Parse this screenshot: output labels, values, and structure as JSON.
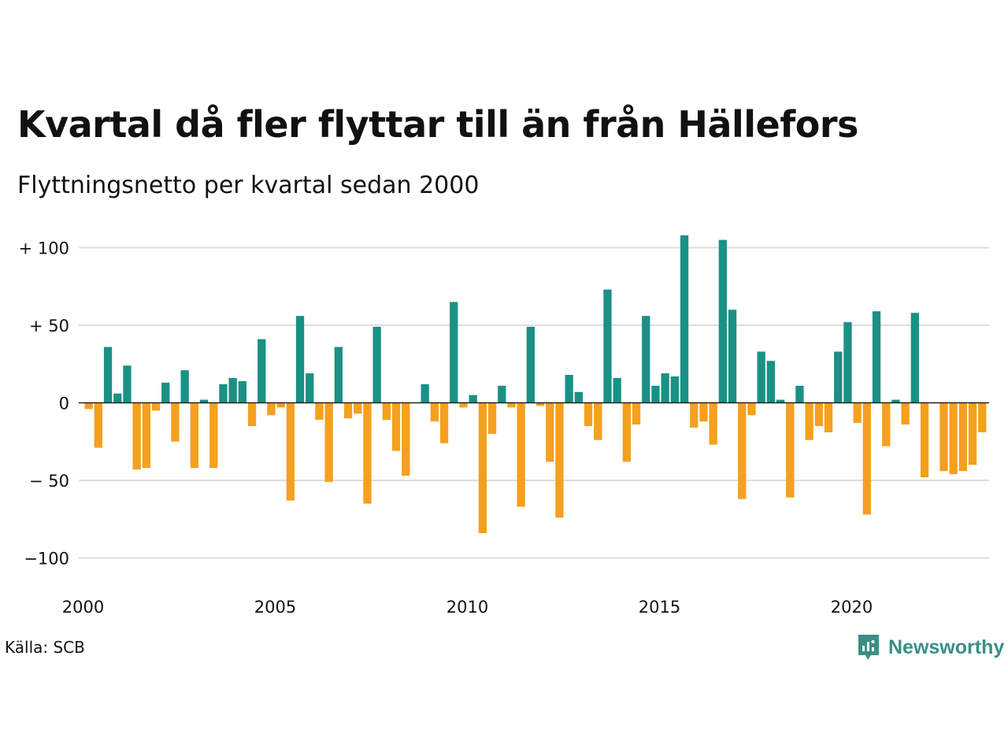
{
  "title": "Kvartal då fler flyttar till än från Hällefors",
  "subtitle": "Flyttningsnetto per kvartal sedan 2000",
  "source": "Källa: SCB",
  "brand": {
    "name": "Newsworthy",
    "icon": "newsworthy-logo-icon",
    "color": "#3a8f86"
  },
  "colors": {
    "positive": "#1a9185",
    "negative": "#f5a01e",
    "grid": "#dddddd",
    "zero_line": "#222222"
  },
  "chart_data": {
    "type": "bar",
    "title": "Kvartal då fler flyttar till än från Hällefors",
    "subtitle": "Flyttningsnetto per kvartal sedan 2000",
    "xlabel": "",
    "ylabel": "",
    "ylim": [
      -110,
      110
    ],
    "y_ticks": [
      {
        "value": 100,
        "label": "+ 100"
      },
      {
        "value": 50,
        "label": "+  50"
      },
      {
        "value": 0,
        "label": "0"
      },
      {
        "value": -50,
        "label": "− 50"
      },
      {
        "value": -100,
        "label": "−100"
      }
    ],
    "x_ticks": [
      {
        "value": 2000,
        "label": "2000"
      },
      {
        "value": 2005,
        "label": "2005"
      },
      {
        "value": 2010,
        "label": "2010"
      },
      {
        "value": 2015,
        "label": "2015"
      },
      {
        "value": 2020,
        "label": "2020"
      }
    ],
    "x_start": 2000,
    "grid": true,
    "legend": "none",
    "series": [
      {
        "values": [
          -4,
          -29,
          36,
          6,
          24,
          -43,
          -42,
          -5,
          13,
          -25,
          21,
          -42,
          2,
          -42,
          12,
          16,
          14,
          -15,
          41,
          -8,
          -3,
          -63,
          56,
          19,
          -11,
          -51,
          36,
          -10,
          -7,
          -65,
          49,
          -11,
          -31,
          -47,
          0,
          12,
          -12,
          -26,
          65,
          -3,
          5,
          -84,
          -20,
          11,
          -3,
          -67,
          49,
          -2,
          -38,
          -74,
          18,
          7,
          -15,
          -24,
          73,
          16,
          -38,
          -14,
          56,
          11,
          19,
          17,
          108,
          -16,
          -12,
          -27,
          105,
          60,
          -62,
          -8,
          33,
          27,
          2,
          -61,
          11,
          -24,
          -15,
          -19,
          33,
          52,
          -13,
          -72,
          59,
          -28,
          2,
          -14,
          58,
          -48,
          0,
          -44,
          -46,
          -44,
          -40,
          -19
        ]
      }
    ]
  }
}
